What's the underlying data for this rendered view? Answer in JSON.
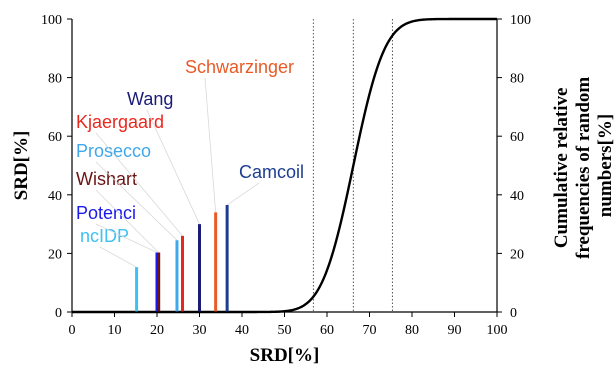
{
  "chart_data": {
    "type": "bar",
    "xlabel": "SRD[%]",
    "ylabel": "SRD[%]",
    "y2label_lines": [
      "Cumulative relative",
      "frequencies of random",
      "numbers[%]"
    ],
    "xlim": [
      0,
      100
    ],
    "ylim": [
      0,
      100
    ],
    "y2lim": [
      0,
      100
    ],
    "xticks": [
      0,
      10,
      20,
      30,
      40,
      50,
      60,
      70,
      80,
      90,
      100
    ],
    "yticks": [
      0,
      20,
      40,
      60,
      80,
      100
    ],
    "y2ticks": [
      0,
      20,
      40,
      60,
      80,
      100
    ],
    "grid": false,
    "bars": [
      {
        "name": "ncIDP",
        "x": 15.2,
        "value": 15.3,
        "color": "#3fc0f0"
      },
      {
        "name": "Potenci",
        "x": 20.0,
        "value": 20.3,
        "color": "#1a1aee"
      },
      {
        "name": "Wishart",
        "x": 20.4,
        "value": 20.3,
        "color": "#6b1414"
      },
      {
        "name": "Prosecco",
        "x": 24.7,
        "value": 24.5,
        "color": "#3fa8ea"
      },
      {
        "name": "Kjaergaard",
        "x": 26.0,
        "value": 26.0,
        "color": "#e8281e"
      },
      {
        "name": "Wang",
        "x": 30.0,
        "value": 30.0,
        "color": "#1b1b78"
      },
      {
        "name": "Schwarzinger",
        "x": 33.8,
        "value": 34.0,
        "color": "#e85a28"
      },
      {
        "name": "Camcoil",
        "x": 36.5,
        "value": 36.5,
        "color": "#1c3d8f"
      }
    ],
    "cumulative_curve": {
      "name": "Cumulative relative frequencies of random numbers",
      "color": "#000000",
      "mean": 66.2,
      "sd": 5.8
    },
    "reference_lines_x": [
      56.8,
      66.2,
      75.4
    ]
  }
}
